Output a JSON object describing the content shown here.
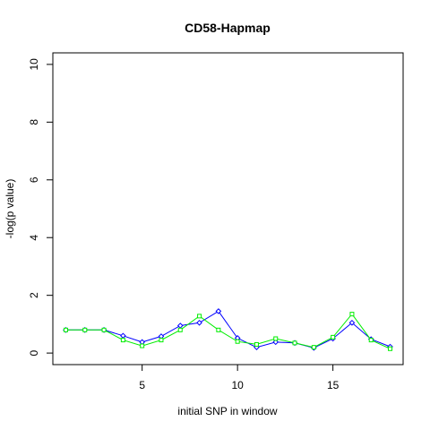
{
  "chart_data": {
    "type": "line",
    "title": "CD58-Hapmap",
    "xlabel": "initial SNP in window",
    "ylabel": "-log(p value)",
    "xlim": [
      0.32,
      18.68
    ],
    "ylim": [
      -0.4,
      10.4
    ],
    "x_ticks": [
      5,
      10,
      15
    ],
    "y_ticks": [
      0,
      2,
      4,
      6,
      8,
      10
    ],
    "grid": false,
    "x": [
      1,
      2,
      3,
      4,
      5,
      6,
      7,
      8,
      9,
      10,
      11,
      12,
      13,
      14,
      15,
      16,
      17,
      18
    ],
    "series": [
      {
        "color": "#0000ff",
        "marker": "diamond",
        "values": [
          0.8,
          0.8,
          0.8,
          0.6,
          0.38,
          0.58,
          0.95,
          1.05,
          1.45,
          0.52,
          0.2,
          0.38,
          0.35,
          0.18,
          0.5,
          1.05,
          0.48,
          0.22
        ]
      },
      {
        "color": "#00ee00",
        "marker": "square",
        "values": [
          0.8,
          0.8,
          0.8,
          0.45,
          0.25,
          0.45,
          0.8,
          1.28,
          0.8,
          0.4,
          0.3,
          0.5,
          0.35,
          0.2,
          0.55,
          1.35,
          0.45,
          0.15
        ]
      }
    ]
  }
}
